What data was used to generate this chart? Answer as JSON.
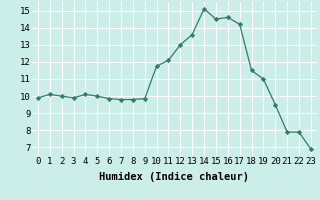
{
  "x": [
    0,
    1,
    2,
    3,
    4,
    5,
    6,
    7,
    8,
    9,
    10,
    11,
    12,
    13,
    14,
    15,
    16,
    17,
    18,
    19,
    20,
    21,
    22,
    23
  ],
  "y": [
    9.9,
    10.1,
    10.0,
    9.9,
    10.1,
    10.0,
    9.85,
    9.8,
    9.8,
    9.85,
    11.75,
    12.1,
    13.0,
    13.6,
    15.1,
    14.5,
    14.6,
    14.2,
    11.5,
    11.0,
    9.5,
    7.9,
    7.9,
    6.9
  ],
  "line_color": "#2e7d6e",
  "marker": "D",
  "marker_size": 2.2,
  "bg_color": "#cceee8",
  "grid_color": "#ffffff",
  "xlabel": "Humidex (Indice chaleur)",
  "xlim": [
    -0.5,
    23.5
  ],
  "ylim": [
    6.5,
    15.5
  ],
  "xticks": [
    0,
    1,
    2,
    3,
    4,
    5,
    6,
    7,
    8,
    9,
    10,
    11,
    12,
    13,
    14,
    15,
    16,
    17,
    18,
    19,
    20,
    21,
    22,
    23
  ],
  "yticks": [
    7,
    8,
    9,
    10,
    11,
    12,
    13,
    14,
    15
  ],
  "xlabel_fontsize": 7.5,
  "tick_fontsize": 6.5
}
